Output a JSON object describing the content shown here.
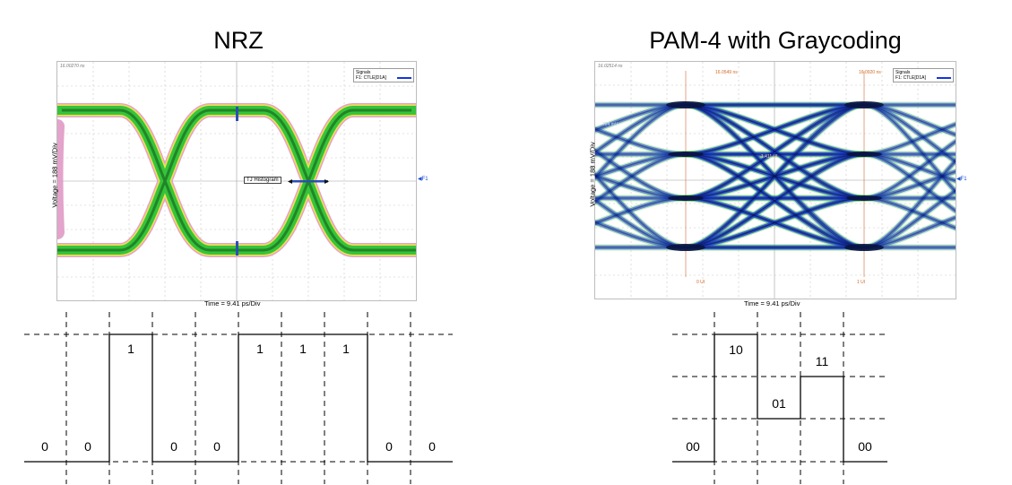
{
  "nrz": {
    "title": "NRZ",
    "scope": {
      "timestamp": "16.00270 ns",
      "legend_title": "Signals",
      "legend_signal": "F1: CTLE[D1A]",
      "ylabel": "Voltage = 188 mV/Div",
      "xlabel": "Time = 9.41 ps/Div",
      "histogram_label": "TJ Histogram",
      "marker_label": "F1"
    },
    "bits": [
      "0",
      "0",
      "1",
      "0",
      "0",
      "1",
      "1",
      "1",
      "0",
      "0"
    ]
  },
  "pam4": {
    "title": "PAM-4 with Graycoding",
    "scope": {
      "timestamp": "16.02514 ns",
      "cursor_time_1": "16.0549 ns",
      "cursor_time_2": "16.0920 ns",
      "level_readout_1": "724 mV",
      "level_readout_2": "1.411 UI",
      "ui_label_1": "0 UI",
      "ui_label_2": "1 UI",
      "legend_title": "Signals",
      "legend_signal": "F1: CTLE[D1A]",
      "ylabel": "Voltage = 188 mV/Div",
      "xlabel": "Time = 9.41 ps/Div",
      "marker_label": "F1"
    },
    "symbols": [
      "00",
      "10",
      "01",
      "11",
      "00"
    ]
  },
  "colors": {
    "nrz_eye_outer": "#e19ac6",
    "nrz_eye_mid": "#f0e24a",
    "nrz_eye_core": "#36c43a",
    "nrz_eye_center": "#1f7a24",
    "pam_eye_core": "#1536d8",
    "pam_eye_dark": "#0a1440",
    "pam_eye_edge": "#52c94f",
    "histogram": "#2b4fb0",
    "marker": "#1a4fd8"
  }
}
